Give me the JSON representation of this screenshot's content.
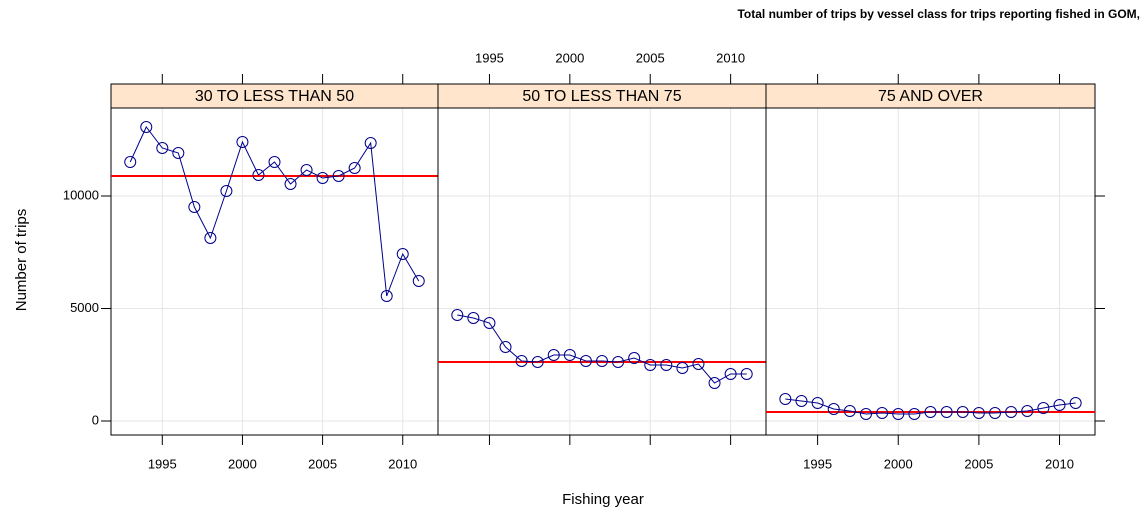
{
  "chart_data": {
    "type": "line",
    "title": "Total number of trips by vessel class for trips reporting fished in GOM,",
    "xlabel": "Fishing year",
    "ylabel": "Number of trips",
    "x": [
      1993,
      1994,
      1995,
      1996,
      1997,
      1998,
      1999,
      2000,
      2001,
      2002,
      2003,
      2004,
      2005,
      2006,
      2007,
      2008,
      2009,
      2010,
      2011
    ],
    "xlim": [
      1991.8,
      2012.2
    ],
    "xticks": [
      1995,
      2000,
      2005,
      2010
    ],
    "ylim": [
      -622,
      13911
    ],
    "yticks": [
      0,
      5000,
      10000
    ],
    "grid": true,
    "line_color": "#00008b",
    "reference_color": "#ff0000",
    "strip_color": "#ffe5cc",
    "panels": [
      {
        "name": "30 TO LESS THAN 50",
        "reference_line": 10889,
        "values": [
          11511,
          13067,
          12133,
          11911,
          9511,
          8133,
          10222,
          12400,
          10933,
          11511,
          10533,
          11156,
          10800,
          10889,
          11244,
          12356,
          5556,
          7422,
          6222
        ]
      },
      {
        "name": "50 TO LESS THAN 75",
        "reference_line": 2622,
        "values": [
          4711,
          4578,
          4356,
          3289,
          2667,
          2622,
          2933,
          2933,
          2667,
          2667,
          2622,
          2800,
          2489,
          2489,
          2356,
          2533,
          1689,
          2089,
          2089
        ]
      },
      {
        "name": "75 AND OVER",
        "reference_line": 400,
        "values": [
          978,
          889,
          800,
          533,
          444,
          311,
          356,
          311,
          311,
          400,
          400,
          400,
          356,
          356,
          400,
          444,
          578,
          711,
          800
        ]
      }
    ]
  }
}
